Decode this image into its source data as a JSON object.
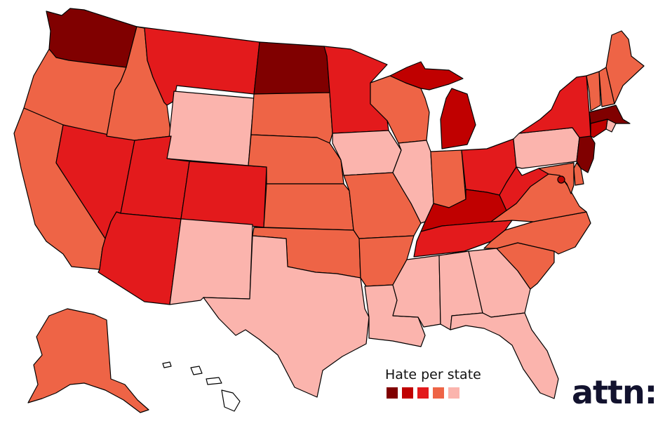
{
  "legend": {
    "title": "Hate per state",
    "levels": [
      {
        "level": 5,
        "color": "#800000"
      },
      {
        "level": 4,
        "color": "#c00000"
      },
      {
        "level": 3,
        "color": "#e31a1c"
      },
      {
        "level": 2,
        "color": "#ee6446"
      },
      {
        "level": 1,
        "color": "#fbb4ad"
      }
    ]
  },
  "brand": {
    "logo_text": "attn:"
  },
  "states": [
    {
      "id": "WA",
      "level": 5
    },
    {
      "id": "OR",
      "level": 2
    },
    {
      "id": "CA",
      "level": 2
    },
    {
      "id": "NV",
      "level": 3
    },
    {
      "id": "ID",
      "level": 2
    },
    {
      "id": "MT",
      "level": 3
    },
    {
      "id": "WY",
      "level": 1
    },
    {
      "id": "UT",
      "level": 3
    },
    {
      "id": "AZ",
      "level": 3
    },
    {
      "id": "CO",
      "level": 3
    },
    {
      "id": "NM",
      "level": 1
    },
    {
      "id": "ND",
      "level": 5
    },
    {
      "id": "SD",
      "level": 2
    },
    {
      "id": "NE",
      "level": 2
    },
    {
      "id": "KS",
      "level": 2
    },
    {
      "id": "OK",
      "level": 2
    },
    {
      "id": "TX",
      "level": 1
    },
    {
      "id": "MN",
      "level": 3
    },
    {
      "id": "IA",
      "level": 1
    },
    {
      "id": "MO",
      "level": 2
    },
    {
      "id": "AR",
      "level": 2
    },
    {
      "id": "LA",
      "level": 1
    },
    {
      "id": "WI",
      "level": 2
    },
    {
      "id": "IL",
      "level": 1
    },
    {
      "id": "MI",
      "level": 4
    },
    {
      "id": "IN",
      "level": 2
    },
    {
      "id": "OH",
      "level": 3
    },
    {
      "id": "KY",
      "level": 4
    },
    {
      "id": "TN",
      "level": 3
    },
    {
      "id": "MS",
      "level": 1
    },
    {
      "id": "AL",
      "level": 1
    },
    {
      "id": "GA",
      "level": 1
    },
    {
      "id": "FL",
      "level": 1
    },
    {
      "id": "SC",
      "level": 2
    },
    {
      "id": "NC",
      "level": 2
    },
    {
      "id": "VA",
      "level": 2
    },
    {
      "id": "WV",
      "level": 3
    },
    {
      "id": "PA",
      "level": 1
    },
    {
      "id": "NY",
      "level": 3
    },
    {
      "id": "VT",
      "level": 2
    },
    {
      "id": "NH",
      "level": 2
    },
    {
      "id": "ME",
      "level": 2
    },
    {
      "id": "MA",
      "level": 5
    },
    {
      "id": "RI",
      "level": 1
    },
    {
      "id": "CT",
      "level": 4
    },
    {
      "id": "NJ",
      "level": 5
    },
    {
      "id": "DE",
      "level": 2
    },
    {
      "id": "MD",
      "level": 2
    },
    {
      "id": "DC",
      "level": 4
    },
    {
      "id": "AK",
      "level": 2
    },
    {
      "id": "HI",
      "level": 0
    }
  ]
}
